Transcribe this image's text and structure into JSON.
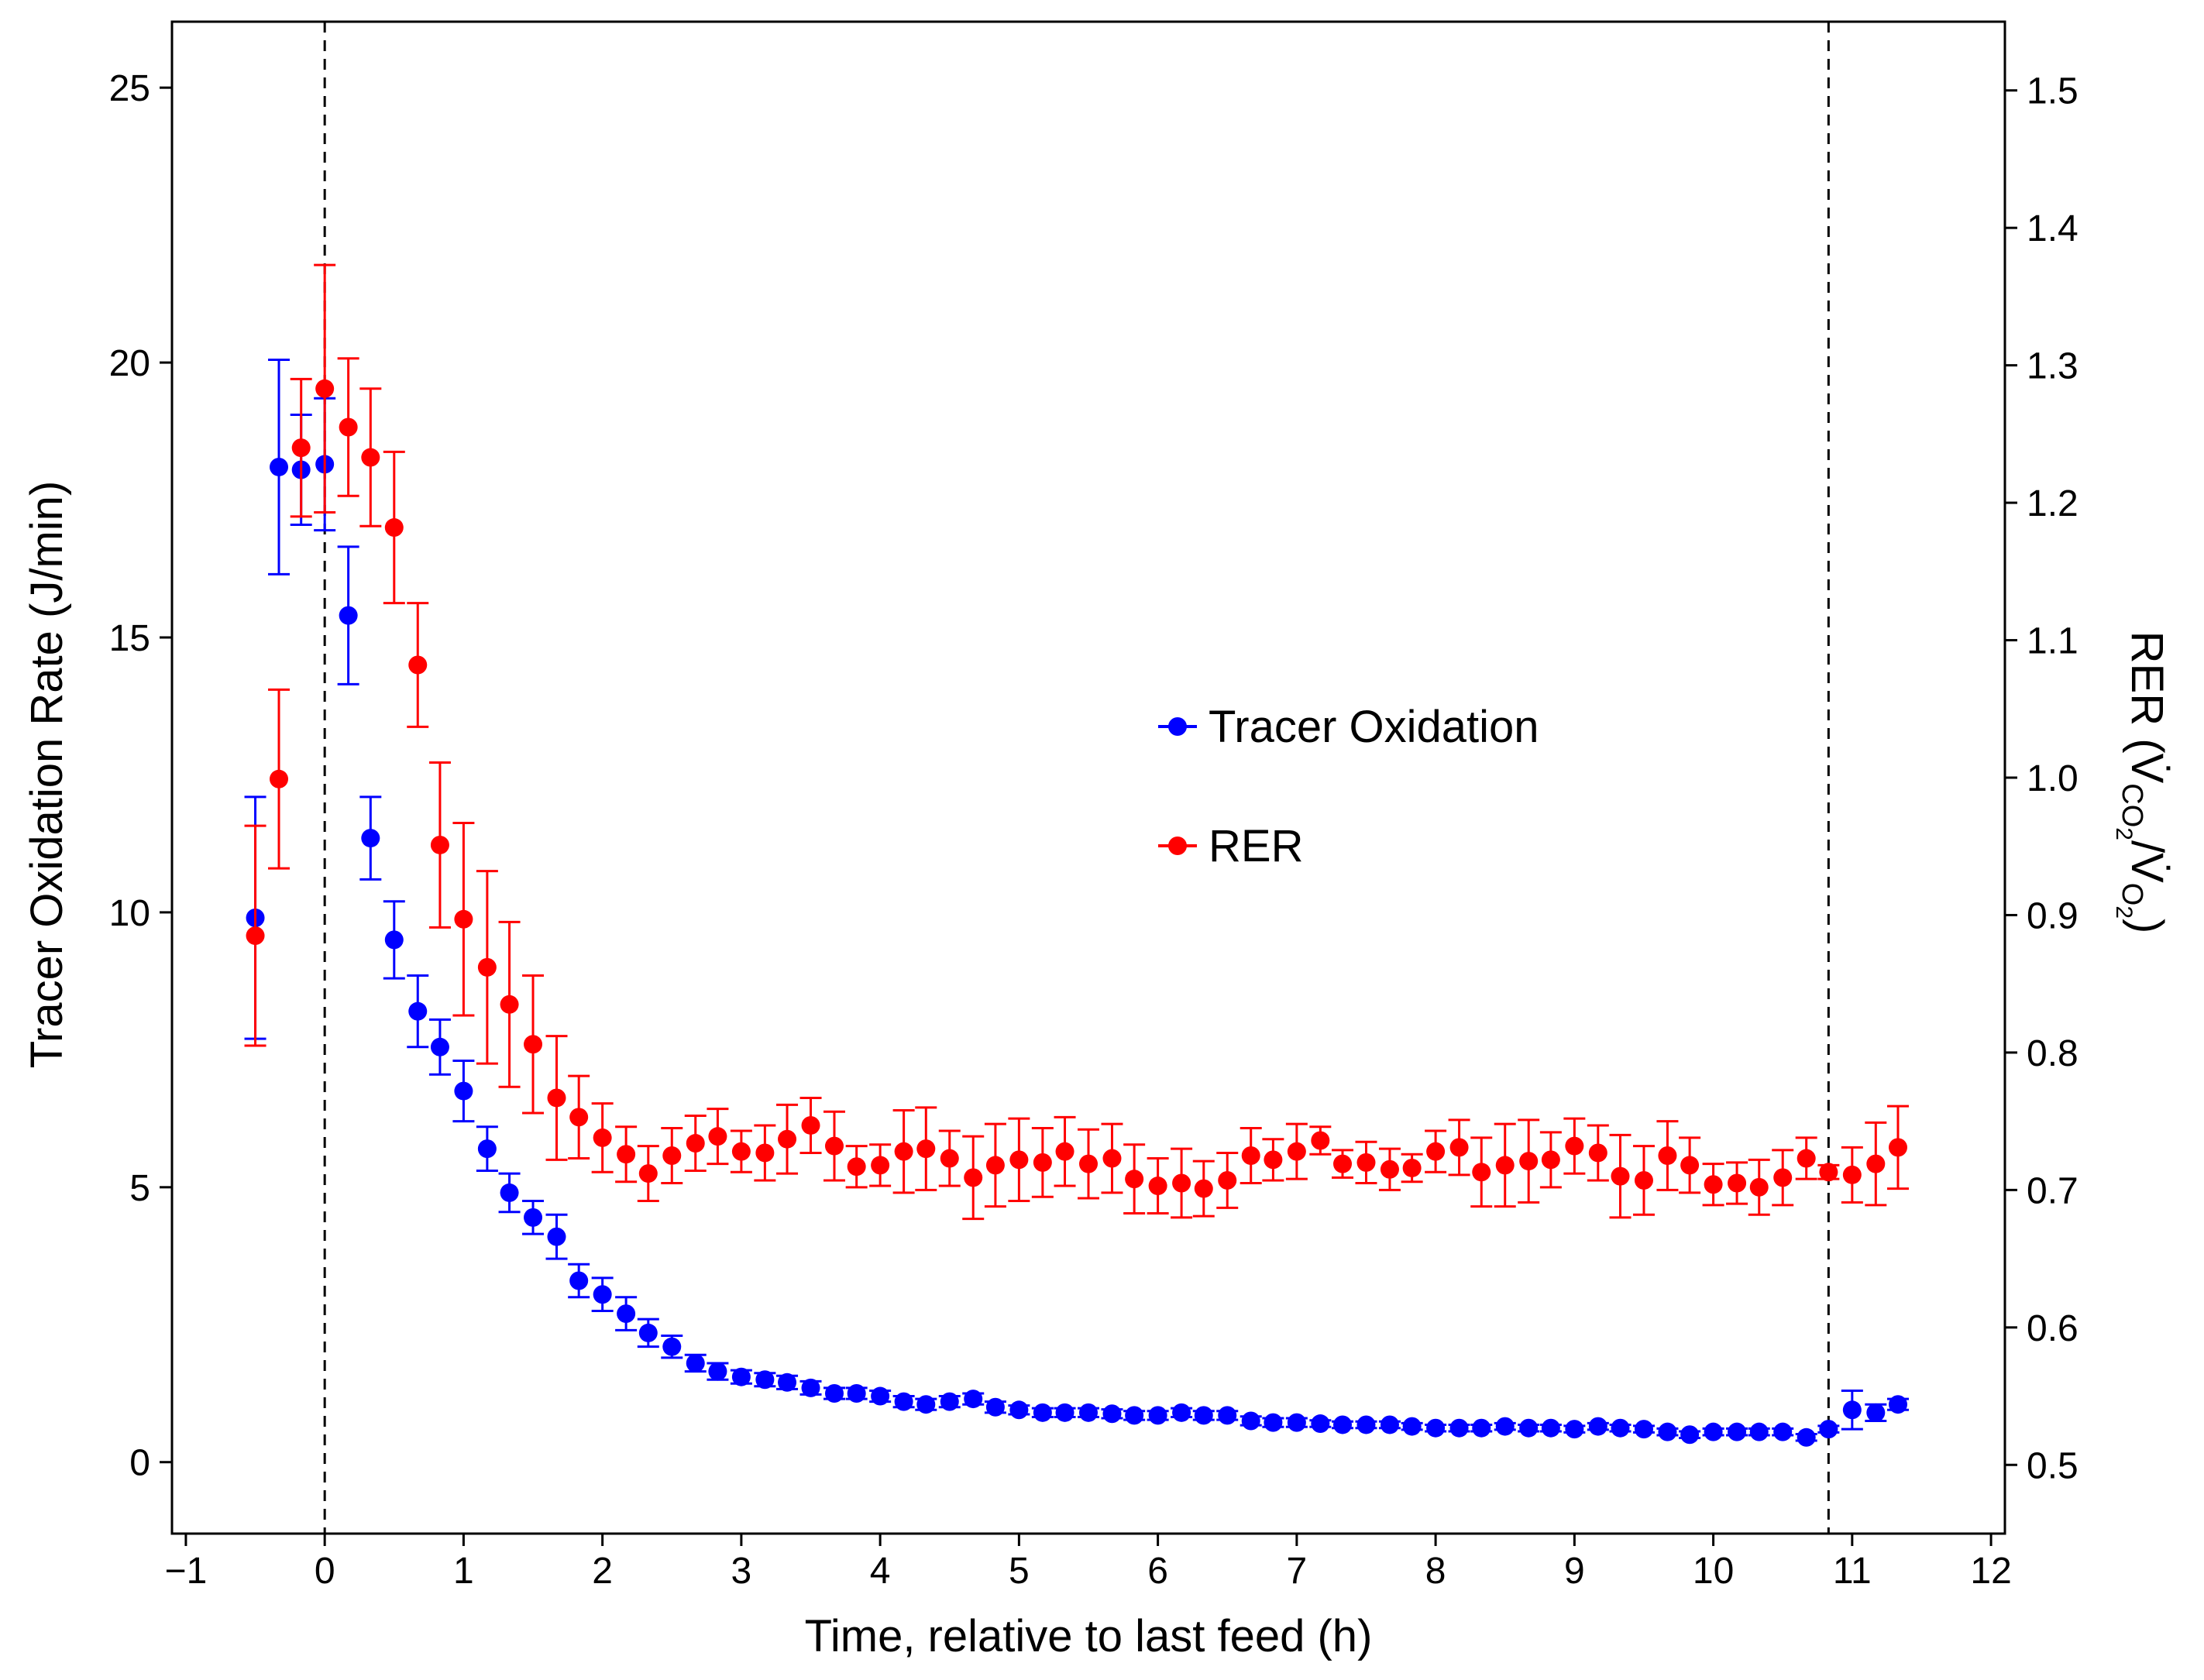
{
  "chart_data": {
    "type": "scatter",
    "xlabel": "Time, relative to last feed (h)",
    "ylabel_left": "Tracer Oxidation Rate (J/min)",
    "ylabel_right": "RER (V̇CO₂/V̇O₂)",
    "ylabel_right_parts": {
      "prefix": "RER (",
      "v1": "V̇",
      "sub1": "CO",
      "sub1b": "2",
      "slash": "/",
      "v2": "V̇",
      "sub2": "O",
      "sub2b": "2",
      "suffix": ")"
    },
    "xlim": [
      -1.1,
      12.1
    ],
    "ylim_left": [
      -1.3,
      26.2
    ],
    "ylim_right": [
      0.45,
      1.55
    ],
    "x_ticks": [
      -1,
      0,
      1,
      2,
      3,
      4,
      5,
      6,
      7,
      8,
      9,
      10,
      11,
      12
    ],
    "x_tick_labels": [
      "−1",
      "0",
      "1",
      "2",
      "3",
      "4",
      "5",
      "6",
      "7",
      "8",
      "9",
      "10",
      "11",
      "12"
    ],
    "y_left_ticks": [
      0,
      5,
      10,
      15,
      20,
      25
    ],
    "y_left_tick_labels": [
      "0",
      "5",
      "10",
      "15",
      "20",
      "25"
    ],
    "y_right_ticks": [
      0.5,
      0.6,
      0.7,
      0.8,
      0.9,
      1.0,
      1.1,
      1.2,
      1.3,
      1.4,
      1.5
    ],
    "y_right_tick_labels": [
      "0.5",
      "0.6",
      "0.7",
      "0.8",
      "0.9",
      "1.0",
      "1.1",
      "1.2",
      "1.3",
      "1.4",
      "1.5"
    ],
    "vertical_lines": [
      0,
      10.83
    ],
    "series": [
      {
        "name": "Tracer Oxidation",
        "color": "#0000ff",
        "axis": "left",
        "x": [
          -0.5,
          -0.33,
          -0.17,
          0,
          0.17,
          0.33,
          0.5,
          0.67,
          0.83,
          1.0,
          1.17,
          1.33,
          1.5,
          1.67,
          1.83,
          2.0,
          2.17,
          2.33,
          2.5,
          2.67,
          2.83,
          3.0,
          3.17,
          3.33,
          3.5,
          3.67,
          3.83,
          4.0,
          4.17,
          4.33,
          4.5,
          4.67,
          4.83,
          5.0,
          5.17,
          5.33,
          5.5,
          5.67,
          5.83,
          6.0,
          6.17,
          6.33,
          6.5,
          6.67,
          6.83,
          7.0,
          7.17,
          7.33,
          7.5,
          7.67,
          7.83,
          8.0,
          8.17,
          8.33,
          8.5,
          8.67,
          8.83,
          9.0,
          9.17,
          9.33,
          9.5,
          9.67,
          9.83,
          10.0,
          10.17,
          10.33,
          10.5,
          10.67,
          10.83,
          11.0,
          11.17,
          11.33
        ],
        "y": [
          9.9,
          18.1,
          18.05,
          18.15,
          15.4,
          11.35,
          9.5,
          8.2,
          7.55,
          6.75,
          5.7,
          4.9,
          4.45,
          4.1,
          3.3,
          3.05,
          2.7,
          2.35,
          2.1,
          1.8,
          1.65,
          1.55,
          1.5,
          1.45,
          1.35,
          1.25,
          1.25,
          1.2,
          1.1,
          1.05,
          1.1,
          1.15,
          1.0,
          0.95,
          0.9,
          0.9,
          0.9,
          0.88,
          0.85,
          0.85,
          0.9,
          0.85,
          0.85,
          0.75,
          0.72,
          0.72,
          0.7,
          0.68,
          0.68,
          0.68,
          0.65,
          0.62,
          0.62,
          0.62,
          0.65,
          0.62,
          0.62,
          0.6,
          0.65,
          0.62,
          0.6,
          0.55,
          0.5,
          0.55,
          0.55,
          0.55,
          0.55,
          0.45,
          0.6,
          0.95,
          0.9,
          1.05
        ],
        "err": [
          2.2,
          1.95,
          1.0,
          1.2,
          1.25,
          0.75,
          0.7,
          0.65,
          0.5,
          0.55,
          0.4,
          0.35,
          0.3,
          0.4,
          0.3,
          0.3,
          0.3,
          0.25,
          0.2,
          0.15,
          0.15,
          0.12,
          0.12,
          0.12,
          0.12,
          0.1,
          0.1,
          0.1,
          0.1,
          0.1,
          0.1,
          0.1,
          0.1,
          0.08,
          0.08,
          0.08,
          0.08,
          0.08,
          0.08,
          0.08,
          0.08,
          0.08,
          0.08,
          0.08,
          0.08,
          0.08,
          0.06,
          0.06,
          0.06,
          0.06,
          0.06,
          0.06,
          0.06,
          0.06,
          0.06,
          0.06,
          0.06,
          0.06,
          0.06,
          0.06,
          0.06,
          0.06,
          0.06,
          0.06,
          0.06,
          0.06,
          0.06,
          0.06,
          0.06,
          0.35,
          0.15,
          0.1
        ]
      },
      {
        "name": "RER",
        "color": "#ff0000",
        "axis": "right",
        "x": [
          -0.5,
          -0.33,
          -0.17,
          0,
          0.17,
          0.33,
          0.5,
          0.67,
          0.83,
          1.0,
          1.17,
          1.33,
          1.5,
          1.67,
          1.83,
          2.0,
          2.17,
          2.33,
          2.5,
          2.67,
          2.83,
          3.0,
          3.17,
          3.33,
          3.5,
          3.67,
          3.83,
          4.0,
          4.17,
          4.33,
          4.5,
          4.67,
          4.83,
          5.0,
          5.17,
          5.33,
          5.5,
          5.67,
          5.83,
          6.0,
          6.17,
          6.33,
          6.5,
          6.67,
          6.83,
          7.0,
          7.17,
          7.33,
          7.5,
          7.67,
          7.83,
          8.0,
          8.17,
          8.33,
          8.5,
          8.67,
          8.83,
          9.0,
          9.17,
          9.33,
          9.5,
          9.67,
          9.83,
          10.0,
          10.17,
          10.33,
          10.5,
          10.67,
          10.83,
          11.0,
          11.17,
          11.33
        ],
        "y": [
          0.885,
          0.999,
          1.24,
          1.283,
          1.255,
          1.233,
          1.182,
          1.082,
          0.951,
          0.897,
          0.862,
          0.835,
          0.806,
          0.767,
          0.753,
          0.738,
          0.726,
          0.712,
          0.725,
          0.734,
          0.739,
          0.728,
          0.727,
          0.737,
          0.747,
          0.732,
          0.717,
          0.718,
          0.728,
          0.73,
          0.723,
          0.709,
          0.718,
          0.722,
          0.72,
          0.728,
          0.719,
          0.723,
          0.708,
          0.703,
          0.705,
          0.701,
          0.707,
          0.725,
          0.722,
          0.728,
          0.736,
          0.719,
          0.72,
          0.715,
          0.716,
          0.728,
          0.731,
          0.713,
          0.718,
          0.721,
          0.722,
          0.732,
          0.727,
          0.71,
          0.707,
          0.725,
          0.718,
          0.704,
          0.705,
          0.702,
          0.709,
          0.723,
          0.713,
          0.711,
          0.719,
          0.731
        ],
        "err": [
          0.08,
          0.065,
          0.05,
          0.09,
          0.05,
          0.05,
          0.055,
          0.045,
          0.06,
          0.07,
          0.07,
          0.06,
          0.05,
          0.045,
          0.03,
          0.025,
          0.02,
          0.02,
          0.02,
          0.02,
          0.02,
          0.015,
          0.02,
          0.025,
          0.02,
          0.025,
          0.015,
          0.015,
          0.03,
          0.03,
          0.02,
          0.03,
          0.03,
          0.03,
          0.025,
          0.025,
          0.025,
          0.025,
          0.025,
          0.02,
          0.025,
          0.02,
          0.02,
          0.02,
          0.015,
          0.02,
          0.01,
          0.01,
          0.015,
          0.015,
          0.01,
          0.015,
          0.02,
          0.025,
          0.03,
          0.03,
          0.02,
          0.02,
          0.02,
          0.03,
          0.025,
          0.025,
          0.02,
          0.015,
          0.015,
          0.02,
          0.02,
          0.015,
          0.005,
          0.02,
          0.03,
          0.03
        ]
      }
    ],
    "legend": {
      "placement": "center-right",
      "items": [
        {
          "label": "Tracer Oxidation",
          "color": "#0000ff"
        },
        {
          "label": "RER",
          "color": "#ff0000"
        }
      ]
    }
  }
}
